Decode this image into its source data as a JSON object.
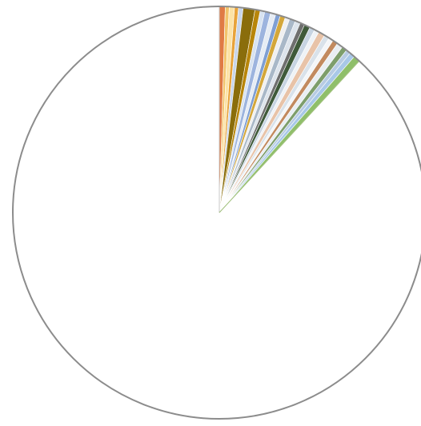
{
  "chart_data": {
    "type": "pie",
    "title": "",
    "legend": "none",
    "labels_shown": false,
    "slices": [
      {
        "value": 0.45,
        "color": "#e07b45"
      },
      {
        "value": 0.3,
        "color": "#f2c46b"
      },
      {
        "value": 0.4,
        "color": "#fce3a6"
      },
      {
        "value": 0.3,
        "color": "#e8a33a"
      },
      {
        "value": 0.35,
        "color": "#c9d6ea"
      },
      {
        "value": 0.9,
        "color": "#8a6d0b"
      },
      {
        "value": 0.4,
        "color": "#b8860b"
      },
      {
        "value": 0.35,
        "color": "#d8e3f0"
      },
      {
        "value": 0.45,
        "color": "#9db4de"
      },
      {
        "value": 0.4,
        "color": "#e6ecf4"
      },
      {
        "value": 0.35,
        "color": "#7f9fd3"
      },
      {
        "value": 0.4,
        "color": "#d4a73a"
      },
      {
        "value": 0.35,
        "color": "#f0f0f0"
      },
      {
        "value": 0.45,
        "color": "#a9b8c8"
      },
      {
        "value": 0.4,
        "color": "#dde4ec"
      },
      {
        "value": 0.35,
        "color": "#6f6f6f"
      },
      {
        "value": 0.45,
        "color": "#3f5a3a"
      },
      {
        "value": 0.4,
        "color": "#c7d4e2"
      },
      {
        "value": 0.35,
        "color": "#eef2f6"
      },
      {
        "value": 0.5,
        "color": "#e8c3a8"
      },
      {
        "value": 0.4,
        "color": "#d9e2ea"
      },
      {
        "value": 0.35,
        "color": "#f4f6f8"
      },
      {
        "value": 0.4,
        "color": "#c28a5f"
      },
      {
        "value": 0.45,
        "color": "#e9eef3"
      },
      {
        "value": 0.4,
        "color": "#7d9e6b"
      },
      {
        "value": 0.35,
        "color": "#b7cbe3"
      },
      {
        "value": 0.4,
        "color": "#a8c8e8"
      },
      {
        "value": 0.5,
        "color": "#8fbf6a"
      },
      {
        "value": 85.9,
        "color": "#ffffff"
      }
    ]
  }
}
